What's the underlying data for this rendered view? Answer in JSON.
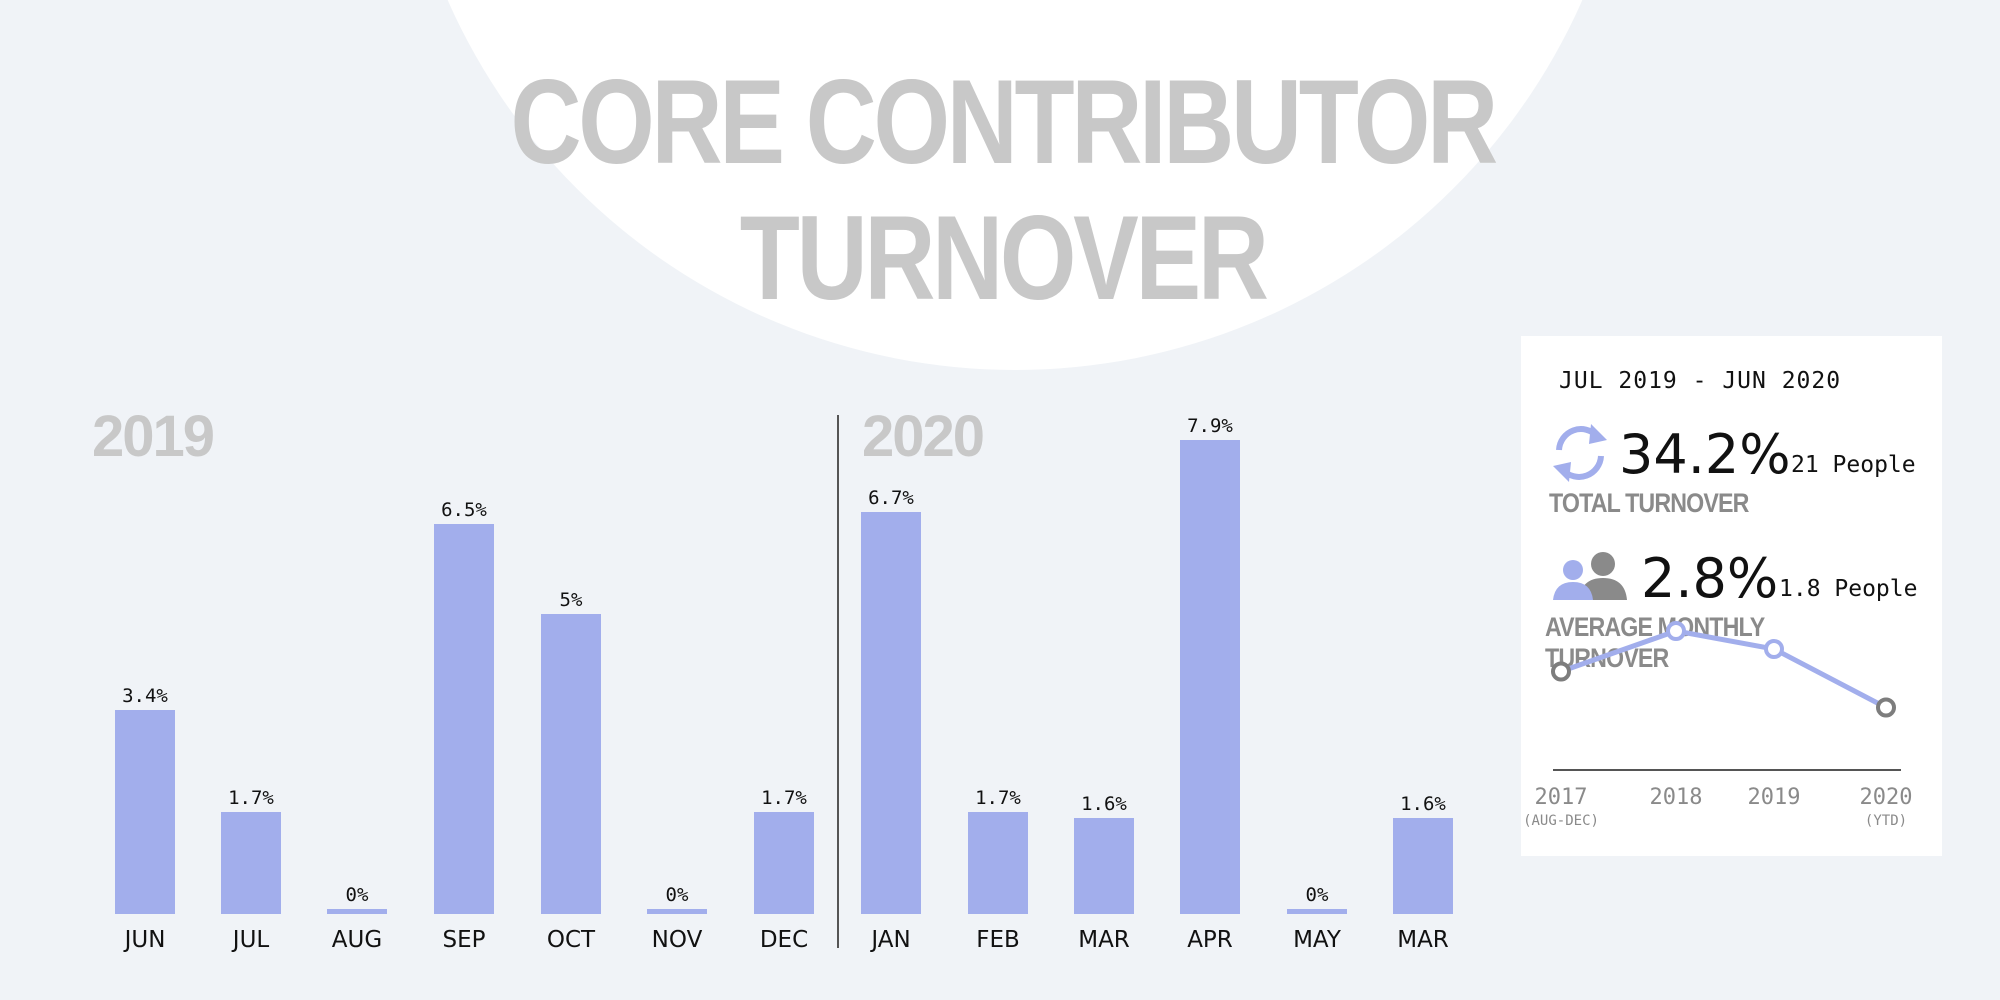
{
  "title_line_1": "CORE CONTRIBUTOR",
  "title_line_2": "TURNOVER",
  "year_labels": [
    "2019",
    "2020"
  ],
  "colors": {
    "bar": "#a2aeec",
    "accent": "#a2aeec",
    "title": "#c8c8c8",
    "background": "#f0f3f7",
    "card": "#ffffff",
    "gray_marker": "#7d7d7d"
  },
  "chart_data": [
    {
      "type": "bar",
      "categories": [
        "JUN",
        "JUL",
        "AUG",
        "SEP",
        "OCT",
        "NOV",
        "DEC",
        "JAN",
        "FEB",
        "MAR",
        "APR",
        "MAY",
        "MAR"
      ],
      "values": [
        3.4,
        1.7,
        0,
        6.5,
        5,
        0,
        1.7,
        6.7,
        1.7,
        1.6,
        7.9,
        0,
        1.6
      ],
      "data_labels": [
        "3.4%",
        "1.7%",
        "0%",
        "6.5%",
        "5%",
        "0%",
        "1.7%",
        "6.7%",
        "1.7%",
        "1.6%",
        "7.9%",
        "0%",
        "1.6%"
      ],
      "groups": [
        {
          "label": "2019",
          "categories": [
            "JUN",
            "JUL",
            "AUG",
            "SEP",
            "OCT",
            "NOV",
            "DEC"
          ]
        },
        {
          "label": "2020",
          "categories": [
            "JAN",
            "FEB",
            "MAR",
            "APR",
            "MAY",
            "MAR"
          ]
        }
      ],
      "title": "CORE CONTRIBUTOR TURNOVER",
      "xlabel": "",
      "ylabel": "",
      "ylim": [
        0,
        8
      ],
      "grid": false
    },
    {
      "type": "line",
      "x": [
        "2017",
        "2018",
        "2019",
        "2020"
      ],
      "x_notes": [
        "(AUG-DEC)",
        "",
        "",
        "(YTD)"
      ],
      "values": [
        2.1,
        3.0,
        2.6,
        1.3
      ],
      "marker_colors": [
        "gray",
        "accent",
        "accent",
        "gray"
      ],
      "grid": false
    }
  ],
  "stats": {
    "period": "JUL 2019 - JUN 2020",
    "total_value": "34.2%",
    "total_people": "21 People",
    "total_caption": "TOTAL TURNOVER",
    "total_icon": "refresh-icon",
    "avg_value": "2.8%",
    "avg_people": "1.8 People",
    "avg_caption": "AVERAGE MONTHLY TURNOVER",
    "avg_icon": "people-icon"
  }
}
